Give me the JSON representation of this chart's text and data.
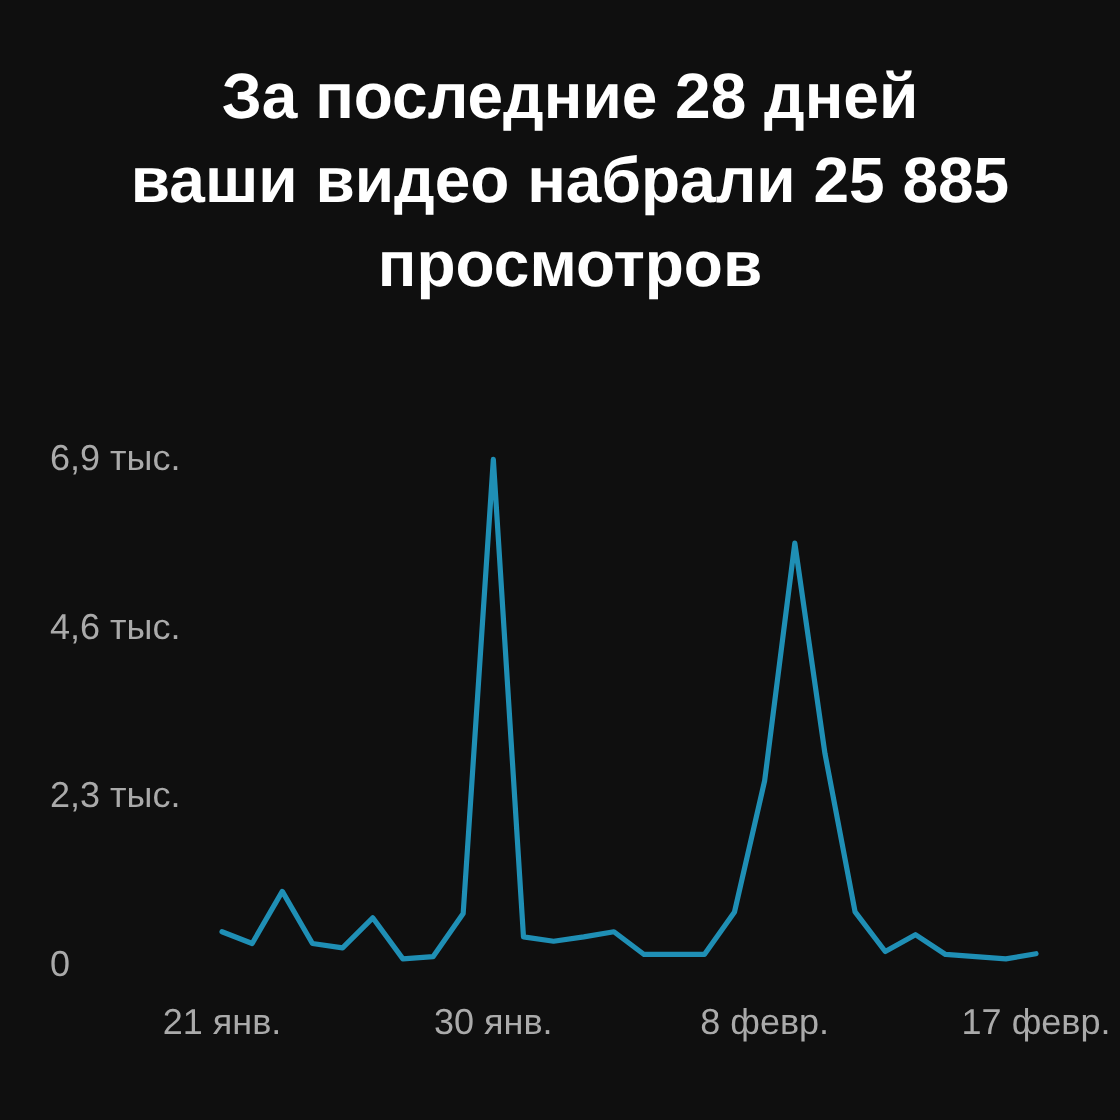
{
  "chart_data": {
    "type": "line",
    "title": "За последние 28 дней\nваши видео набрали 25 885\nпросмотров",
    "categories": [
      "21 янв.",
      null,
      null,
      null,
      null,
      null,
      null,
      null,
      null,
      "30 янв.",
      null,
      null,
      null,
      null,
      null,
      null,
      null,
      null,
      "8 февр.",
      null,
      null,
      null,
      null,
      null,
      null,
      null,
      null,
      "17 февр."
    ],
    "series": [
      {
        "color": "#1f8fb5",
        "values": [
          0.44,
          0.28,
          0.99,
          0.28,
          0.22,
          0.63,
          0.07,
          0.1,
          0.69,
          6.88,
          0.37,
          0.31,
          0.37,
          0.44,
          0.13,
          0.13,
          0.13,
          0.71,
          2.5,
          5.74,
          2.87,
          0.71,
          0.17,
          0.4,
          0.13,
          0.1,
          0.07,
          0.14
        ]
      }
    ],
    "ylim": [
      0,
      6.9
    ],
    "yticks": [
      0,
      {
        "value": 2.3,
        "label": "2,3 тыс."
      },
      {
        "value": 4.6,
        "label": "4,6 тыс."
      },
      {
        "value": 6.9,
        "label": "6,9 тыс."
      }
    ],
    "grid": false,
    "marker": "none"
  }
}
